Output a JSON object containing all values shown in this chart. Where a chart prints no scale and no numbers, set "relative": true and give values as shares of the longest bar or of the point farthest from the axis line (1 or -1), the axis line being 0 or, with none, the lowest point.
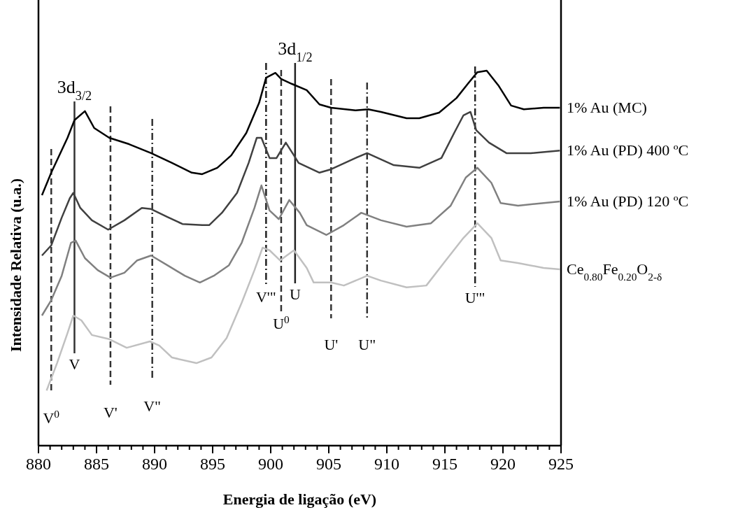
{
  "chart_data": {
    "type": "line",
    "relative": true,
    "xlabel": "Energia de ligação (eV)",
    "ylabel": "Intensidade Relativa (u.a.)",
    "grid": false,
    "marker": "none",
    "xlim": [
      880,
      925
    ],
    "xticks": [
      880,
      {
        "value": 881,
        "label": null
      },
      {
        "value": 882,
        "label": null
      },
      {
        "value": 883,
        "label": null
      },
      {
        "value": 884,
        "label": null
      },
      885,
      {
        "value": 886,
        "label": null
      },
      {
        "value": 887,
        "label": null
      },
      {
        "value": 888,
        "label": null
      },
      {
        "value": 889,
        "label": null
      },
      890,
      {
        "value": 891,
        "label": null
      },
      {
        "value": 892,
        "label": null
      },
      {
        "value": 893,
        "label": null
      },
      {
        "value": 894,
        "label": null
      },
      895,
      {
        "value": 896,
        "label": null
      },
      {
        "value": 897,
        "label": null
      },
      {
        "value": 898,
        "label": null
      },
      {
        "value": 899,
        "label": null
      },
      900,
      {
        "value": 901,
        "label": null
      },
      {
        "value": 902,
        "label": null
      },
      {
        "value": 903,
        "label": null
      },
      {
        "value": 904,
        "label": null
      },
      905,
      {
        "value": 906,
        "label": null
      },
      {
        "value": 907,
        "label": null
      },
      {
        "value": 908,
        "label": null
      },
      {
        "value": 909,
        "label": null
      },
      910,
      {
        "value": 911,
        "label": null
      },
      {
        "value": 912,
        "label": null
      },
      {
        "value": 913,
        "label": null
      },
      {
        "value": 914,
        "label": null
      },
      915,
      {
        "value": 916,
        "label": null
      },
      {
        "value": 917,
        "label": null
      },
      {
        "value": 918,
        "label": null
      },
      {
        "value": 919,
        "label": null
      },
      920,
      {
        "value": 921,
        "label": null
      },
      {
        "value": 922,
        "label": null
      },
      {
        "value": 923,
        "label": null
      },
      {
        "value": 924,
        "label": null
      },
      925
    ],
    "series": [
      {
        "name": "1% Au (MC)",
        "color": "#000000",
        "x": [
          880.3,
          881.1,
          882.5,
          883.1,
          884.0,
          884.8,
          886.1,
          887.8,
          889.7,
          891.5,
          893.2,
          894.1,
          895.4,
          896.6,
          897.9,
          899.0,
          899.6,
          900.4,
          900.9,
          901.8,
          903.1,
          904.2,
          905.2,
          907.3,
          908.4,
          909.5,
          911.7,
          912.8,
          914.5,
          916.0,
          917.0,
          917.8,
          918.6,
          919.6,
          920.7,
          921.8,
          923.5,
          924.9
        ],
        "values": [
          0.668,
          0.728,
          0.821,
          0.868,
          0.892,
          0.847,
          0.821,
          0.804,
          0.78,
          0.754,
          0.728,
          0.724,
          0.741,
          0.774,
          0.834,
          0.914,
          0.981,
          0.994,
          0.978,
          0.965,
          0.948,
          0.91,
          0.901,
          0.894,
          0.897,
          0.89,
          0.873,
          0.873,
          0.888,
          0.927,
          0.966,
          0.996,
          1.0,
          0.961,
          0.907,
          0.897,
          0.901,
          0.901
        ]
      },
      {
        "name": "1% Au (PD) 400 ºC",
        "color": "#404040",
        "x": [
          880.3,
          881.1,
          882.0,
          882.7,
          883.0,
          883.6,
          884.6,
          886.0,
          887.4,
          888.9,
          889.7,
          891.1,
          892.4,
          894.1,
          894.7,
          895.8,
          897.1,
          898.1,
          898.8,
          899.2,
          899.9,
          900.5,
          901.3,
          902.0,
          902.4,
          904.2,
          905.2,
          907.3,
          908.3,
          910.6,
          912.8,
          914.7,
          915.8,
          916.6,
          917.2,
          917.7,
          918.8,
          920.3,
          922.4,
          924.9
        ],
        "values": [
          0.507,
          0.534,
          0.608,
          0.66,
          0.674,
          0.634,
          0.601,
          0.576,
          0.601,
          0.634,
          0.631,
          0.61,
          0.591,
          0.588,
          0.588,
          0.621,
          0.674,
          0.754,
          0.821,
          0.821,
          0.767,
          0.767,
          0.808,
          0.774,
          0.754,
          0.728,
          0.737,
          0.767,
          0.78,
          0.748,
          0.741,
          0.767,
          0.834,
          0.881,
          0.89,
          0.841,
          0.808,
          0.78,
          0.78,
          0.787
        ]
      },
      {
        "name": "1% Au (PD) 120 ºC",
        "color": "#808080",
        "x": [
          880.3,
          881.1,
          882.0,
          882.8,
          883.2,
          884.0,
          885.1,
          886.2,
          887.4,
          888.5,
          889.7,
          891.1,
          892.6,
          893.9,
          895.1,
          896.4,
          897.5,
          898.6,
          899.2,
          899.9,
          900.7,
          901.6,
          902.5,
          903.1,
          904.8,
          906.3,
          907.8,
          909.5,
          911.7,
          913.8,
          915.5,
          916.8,
          917.8,
          919.0,
          919.8,
          921.3,
          923.5,
          924.9
        ],
        "values": [
          0.347,
          0.388,
          0.453,
          0.541,
          0.547,
          0.5,
          0.468,
          0.448,
          0.461,
          0.494,
          0.507,
          0.481,
          0.453,
          0.435,
          0.453,
          0.481,
          0.541,
          0.634,
          0.694,
          0.627,
          0.604,
          0.655,
          0.621,
          0.588,
          0.562,
          0.588,
          0.621,
          0.601,
          0.584,
          0.593,
          0.64,
          0.715,
          0.741,
          0.701,
          0.647,
          0.64,
          0.647,
          0.651
        ]
      },
      {
        "name": "Ce$_{0.80}$Fe$_{0.20}$O$_{2-δ}$",
        "color": "#c0c0c0",
        "x": [
          880.7,
          881.6,
          882.5,
          883.0,
          883.7,
          884.6,
          886.1,
          887.6,
          889.6,
          890.4,
          891.5,
          893.6,
          894.9,
          896.2,
          897.5,
          898.6,
          899.3,
          899.9,
          900.8,
          902.0,
          903.1,
          903.7,
          905.2,
          906.3,
          908.3,
          909.5,
          911.7,
          913.4,
          914.9,
          916.6,
          917.8,
          919.0,
          919.8,
          921.3,
          923.5,
          924.9
        ],
        "values": [
          0.147,
          0.22,
          0.3,
          0.347,
          0.334,
          0.295,
          0.284,
          0.261,
          0.278,
          0.267,
          0.235,
          0.22,
          0.235,
          0.287,
          0.381,
          0.468,
          0.528,
          0.521,
          0.494,
          0.521,
          0.474,
          0.435,
          0.435,
          0.427,
          0.453,
          0.44,
          0.422,
          0.427,
          0.487,
          0.554,
          0.593,
          0.554,
          0.494,
          0.487,
          0.474,
          0.47
        ]
      }
    ],
    "ref_lines": [
      {
        "axis": "x",
        "value": 881.1,
        "label": "V$^{0}$",
        "color": "#333333",
        "line_style": "dashed"
      },
      {
        "axis": "x",
        "value": 883.1,
        "label": "V",
        "color": "#333333",
        "line_style": "solid"
      },
      {
        "axis": "x",
        "value": 886.2,
        "label": "V'",
        "color": "#333333",
        "line_style": "dashed"
      },
      {
        "axis": "x",
        "value": 889.8,
        "label": "V\"",
        "color": "#333333",
        "line_style": "dashdot"
      },
      {
        "axis": "x",
        "value": 899.6,
        "label": "V'\"",
        "color": "#222222",
        "line_style": "dashdot"
      },
      {
        "axis": "x",
        "value": 900.9,
        "label": "U$^{0}$",
        "color": "#333333",
        "line_style": "dashed"
      },
      {
        "axis": "x",
        "value": 902.1,
        "label": "U",
        "color": "#222222",
        "line_style": "solid"
      },
      {
        "axis": "x",
        "value": 905.2,
        "label": "U'",
        "color": "#333333",
        "line_style": "dashed"
      },
      {
        "axis": "x",
        "value": 908.3,
        "label": "U\"",
        "color": "#333333",
        "line_style": "dashdot"
      },
      {
        "axis": "x",
        "value": 917.6,
        "label": "U'\"",
        "color": "#222222",
        "line_style": "dashdot"
      }
    ],
    "annotations": [
      "3d$_{3/2}$",
      "3d$_{1/2}$"
    ]
  }
}
